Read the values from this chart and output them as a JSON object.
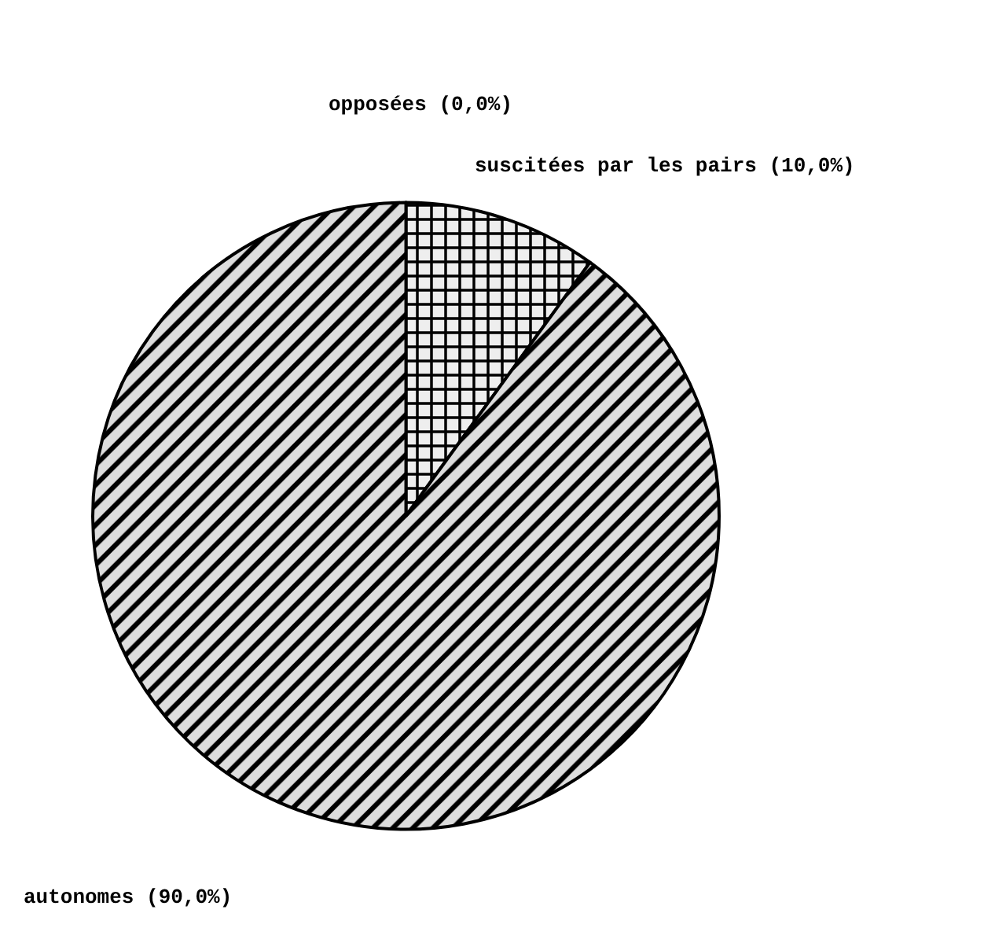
{
  "chart_data": {
    "type": "pie",
    "categories": [
      "opposées (0,0%)",
      "suscitées par les pairs (10,0%)",
      "autonomes (90,0%)"
    ],
    "values": [
      0,
      10,
      90
    ],
    "colors": [
      "#eeeeee",
      "#eeeeee",
      "#dddddd"
    ]
  }
}
